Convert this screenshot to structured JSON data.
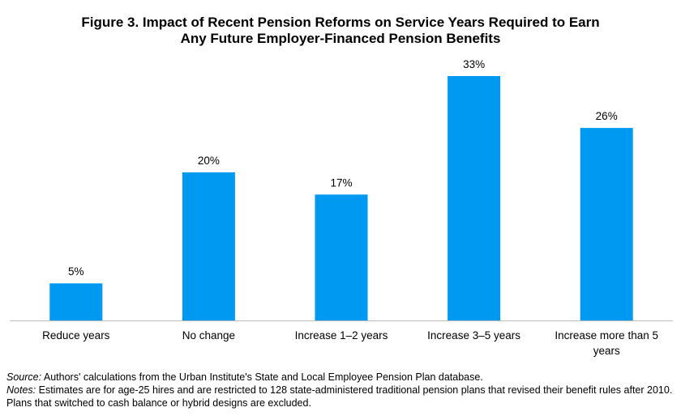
{
  "figure": {
    "title_line1": "Figure 3. Impact of Recent Pension Reforms on Service Years Required to Earn",
    "title_line2": "Any Future Employer-Financed Pension Benefits"
  },
  "chart_data": {
    "type": "bar",
    "title": "Figure 3. Impact of Recent Pension Reforms on Service Years Required to Earn Any Future Employer-Financed Pension Benefits",
    "categories": [
      [
        "Reduce years"
      ],
      [
        "No change"
      ],
      [
        "Increase 1–2 years"
      ],
      [
        "Increase 3–5 years"
      ],
      [
        "Increase more than 5",
        "years"
      ]
    ],
    "values": [
      5,
      20,
      17,
      33,
      26
    ],
    "data_labels": [
      "5%",
      "20%",
      "17%",
      "33%",
      "26%"
    ],
    "ylim": [
      0,
      35
    ],
    "grid": false,
    "legend": "none",
    "bar_color": "#0099f2",
    "axis_color": "#bfbfbf"
  },
  "footnotes": {
    "source_label": "Source:",
    "source_text": " Authors' calculations from the Urban Institute's State and Local Employee Pension Plan database.",
    "notes_label": "Notes:",
    "notes_text": " Estimates are for age-25 hires and are restricted to 128 state-administered traditional pension plans that revised their benefit rules after 2010. Plans that switched to cash balance or hybrid designs are excluded."
  }
}
